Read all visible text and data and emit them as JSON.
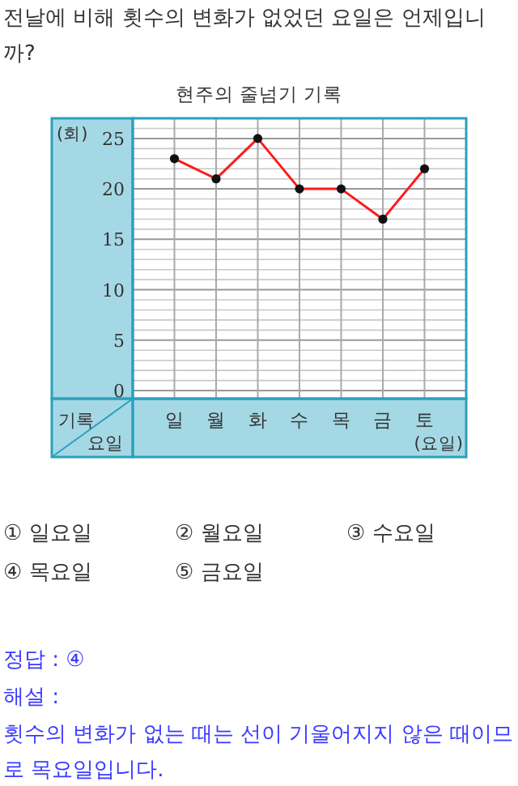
{
  "chart_data": {
    "type": "line",
    "title": "현주의 줄넘기 기록",
    "xlabel": "(요일)",
    "ylabel": "(회)",
    "categories": [
      "일",
      "월",
      "화",
      "수",
      "목",
      "금",
      "토"
    ],
    "series": [
      {
        "color": "#ff1a1a",
        "values": [
          23,
          21,
          25,
          20,
          20,
          17,
          22
        ]
      }
    ],
    "marker": "circle",
    "line_style": "solid",
    "grid": true,
    "ylim": [
      -0.8,
      27
    ],
    "yticks": [
      0,
      {
        "value": 1,
        "label": null
      },
      {
        "value": 2,
        "label": null
      },
      {
        "value": 3,
        "label": null
      },
      {
        "value": 4,
        "label": null
      },
      5,
      {
        "value": 6,
        "label": null
      },
      {
        "value": 7,
        "label": null
      },
      {
        "value": 8,
        "label": null
      },
      {
        "value": 9,
        "label": null
      },
      10,
      {
        "value": 11,
        "label": null
      },
      {
        "value": 12,
        "label": null
      },
      {
        "value": 13,
        "label": null
      },
      {
        "value": 14,
        "label": null
      },
      15,
      {
        "value": 16,
        "label": null
      },
      {
        "value": 17,
        "label": null
      },
      {
        "value": 18,
        "label": null
      },
      {
        "value": 19,
        "label": null
      },
      20,
      {
        "value": 21,
        "label": null
      },
      {
        "value": 22,
        "label": null
      },
      {
        "value": 23,
        "label": null
      },
      {
        "value": 24,
        "label": null
      },
      25,
      {
        "value": 26,
        "label": null
      },
      {
        "value": 27,
        "label": null
      }
    ],
    "annotations": [
      "전날에 비해 횟수의 변화가 없었던 요일은 언제입니까?",
      "기록",
      "요일",
      "① 일요일",
      "② 월요일",
      "③ 수요일",
      "④ 목요일",
      "⑤ 금요일",
      "정답 : ④",
      "해설 :",
      "횟수의 변화가 없는 때는 선이 기울어지지 않은 때이므로 목요일입니다."
    ]
  }
}
